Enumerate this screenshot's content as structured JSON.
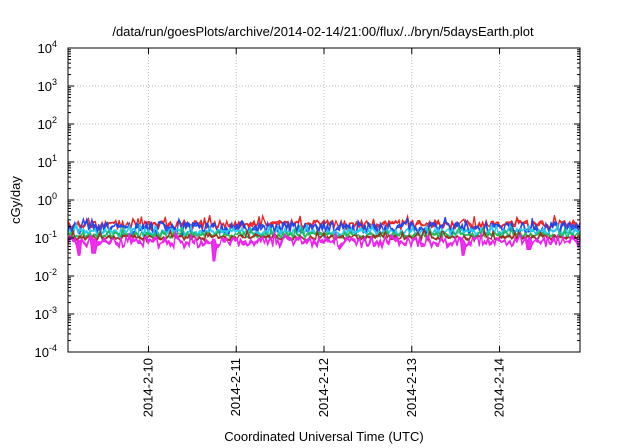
{
  "chart_data": {
    "type": "area",
    "title": "/data/run/goesPlots/archive/2014-02-14/21:00/flux/../bryn/5daysEarth.plot",
    "xlabel": "Coordinated Universal Time (UTC)",
    "ylabel": "cGy/day",
    "yscale": "log",
    "ylim": [
      0.0001,
      10000
    ],
    "xlim": [
      "2014-02-09T02:00",
      "2014-02-14T22:00"
    ],
    "y_ticks": [
      {
        "base": "10",
        "exp": "-4"
      },
      {
        "base": "10",
        "exp": "-3"
      },
      {
        "base": "10",
        "exp": "-2"
      },
      {
        "base": "10",
        "exp": "-1"
      },
      {
        "base": "10",
        "exp": "0"
      },
      {
        "base": "10",
        "exp": "1"
      },
      {
        "base": "10",
        "exp": "2"
      },
      {
        "base": "10",
        "exp": "3"
      },
      {
        "base": "10",
        "exp": "4"
      }
    ],
    "x_ticks": [
      "2014-2-10",
      "2014-2-11",
      "2014-2-12",
      "2014-2-13",
      "2014-2-14"
    ],
    "grid": true,
    "legend": "none",
    "series": [
      {
        "color": "#ee2222",
        "center": 0.24,
        "spread": 0.06,
        "dips": []
      },
      {
        "color": "#2244ee",
        "center": 0.2,
        "spread": 0.08,
        "dips": []
      },
      {
        "color": "#22ccee",
        "center": 0.15,
        "spread": 0.05,
        "dips": []
      },
      {
        "color": "#22bb55",
        "center": 0.125,
        "spread": 0.04,
        "dips": []
      },
      {
        "color": "#993322",
        "center": 0.105,
        "spread": 0.035,
        "dips": []
      },
      {
        "color": "#ee22ee",
        "center": 0.085,
        "spread": 0.07,
        "dips": [
          {
            "x": "2014-02-09T05:00",
            "value": 0.035
          },
          {
            "x": "2014-02-09T09:00",
            "value": 0.04
          },
          {
            "x": "2014-02-10T18:00",
            "value": 0.025
          },
          {
            "x": "2014-02-13T14:00",
            "value": 0.035
          },
          {
            "x": "2014-02-14T08:00",
            "value": 0.05
          }
        ]
      }
    ]
  }
}
